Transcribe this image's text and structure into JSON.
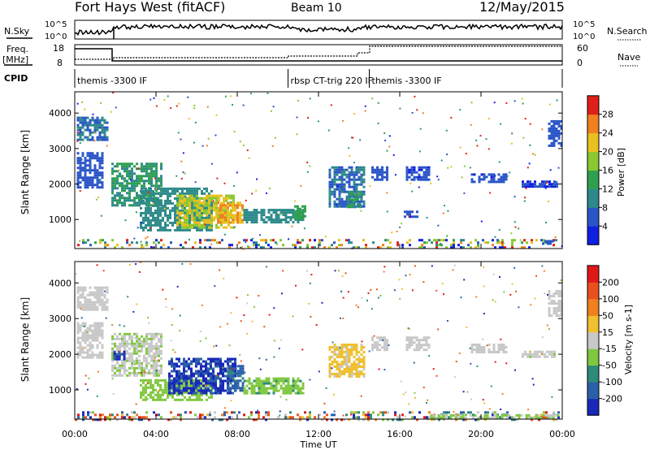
{
  "header": {
    "station": "Fort Hays West (fitACF)",
    "beam": "Beam 10",
    "date": "12/May/2015"
  },
  "status_panels": {
    "nsky_label": "N.Sky",
    "nsearch_label": "N.Search",
    "noise_ticks": [
      "10^5",
      "10^0"
    ],
    "noise_ticks_right": [
      "10^5",
      "10^0"
    ],
    "freq_label": "Freq.",
    "freq_unit": "[MHz]",
    "freq_ticks": [
      "18",
      "8"
    ],
    "nave_label": "Nave",
    "nave_ticks": [
      "60",
      "0"
    ],
    "cpid_label": "CPID",
    "cpid_segments": [
      {
        "start_hour": 0.0,
        "end_hour": 10.5,
        "label": "themis -3300 IF"
      },
      {
        "start_hour": 10.5,
        "end_hour": 14.5,
        "label": "rbsp CT-trig 220 IF"
      },
      {
        "start_hour": 14.5,
        "end_hour": 24.0,
        "label": "themis -3300 IF"
      }
    ]
  },
  "axes": {
    "xlabel": "Time UT",
    "x_range_hours": [
      0,
      24
    ],
    "x_ticks": [
      "00:00",
      "04:00",
      "08:00",
      "12:00",
      "16:00",
      "20:00",
      "00:00"
    ],
    "ylabel": "Slant Range [km]",
    "y_range_km": [
      180,
      4600
    ],
    "y_ticks": [
      1000,
      2000,
      3000,
      4000
    ]
  },
  "chart_data": [
    {
      "type": "heatmap",
      "panel": "power",
      "colorbar_label": "Power [dB]",
      "colorbar_ticks": [
        "28",
        "24",
        "20",
        "16",
        "12",
        "8",
        "4"
      ],
      "colorbar_range": [
        0,
        32
      ],
      "colors": [
        "#1020e0",
        "#2a55c8",
        "#2e8a8a",
        "#2ea050",
        "#8ac830",
        "#e8c020",
        "#f08020",
        "#e02018"
      ],
      "patches": [
        {
          "x0": 0.1,
          "x1": 1.6,
          "y0": 3250,
          "y1": 3900,
          "value": 8
        },
        {
          "x0": 0.1,
          "x1": 1.4,
          "y0": 1900,
          "y1": 2900,
          "value": 6
        },
        {
          "x0": 1.8,
          "x1": 4.3,
          "y0": 1400,
          "y1": 2600,
          "value": 12
        },
        {
          "x0": 3.2,
          "x1": 6.8,
          "y0": 700,
          "y1": 1900,
          "value": 10
        },
        {
          "x0": 5.0,
          "x1": 7.8,
          "y0": 800,
          "y1": 1700,
          "value": 20
        },
        {
          "x0": 7.0,
          "x1": 8.3,
          "y0": 900,
          "y1": 1500,
          "value": 24
        },
        {
          "x0": 8.3,
          "x1": 11.2,
          "y0": 900,
          "y1": 1300,
          "value": 10
        },
        {
          "x0": 10.8,
          "x1": 11.3,
          "y0": 1000,
          "y1": 1400,
          "value": 14
        },
        {
          "x0": 12.5,
          "x1": 14.3,
          "y0": 1400,
          "y1": 2500,
          "value": 8
        },
        {
          "x0": 13.4,
          "x1": 14.1,
          "y0": 1350,
          "y1": 1800,
          "value": 12
        },
        {
          "x0": 14.6,
          "x1": 15.4,
          "y0": 2150,
          "y1": 2500,
          "value": 6
        },
        {
          "x0": 16.3,
          "x1": 17.5,
          "y0": 2100,
          "y1": 2500,
          "value": 5
        },
        {
          "x0": 16.2,
          "x1": 16.9,
          "y0": 1050,
          "y1": 1250,
          "value": 5
        },
        {
          "x0": 19.5,
          "x1": 21.3,
          "y0": 2050,
          "y1": 2300,
          "value": 5
        },
        {
          "x0": 22.0,
          "x1": 23.8,
          "y0": 1950,
          "y1": 2100,
          "value": 4
        },
        {
          "x0": 23.3,
          "x1": 24.0,
          "y0": 3100,
          "y1": 3800,
          "value": 6
        },
        {
          "x0": 23.0,
          "x1": 23.6,
          "y0": 320,
          "y1": 420,
          "value": 6
        }
      ],
      "ground_band": {
        "x0": 0.0,
        "x1": 24.0,
        "y0": 180,
        "y1": 450
      }
    },
    {
      "type": "heatmap",
      "panel": "velocity",
      "colorbar_label": "Velocity [m s-1]",
      "colorbar_ticks": [
        "200",
        "100",
        "50",
        "15",
        "-15",
        "-50",
        "-100",
        "-200"
      ],
      "colorbar_range": [
        -250,
        250
      ],
      "colors": [
        "#1a28b8",
        "#2a60a8",
        "#2e8a7a",
        "#80c840",
        "#c8c8c8",
        "#f0c030",
        "#f08020",
        "#e85020",
        "#e01818"
      ],
      "patches": [
        {
          "x0": 0.1,
          "x1": 1.6,
          "y0": 3250,
          "y1": 3900,
          "value": 0
        },
        {
          "x0": 0.1,
          "x1": 1.4,
          "y0": 1900,
          "y1": 2900,
          "value": 5
        },
        {
          "x0": 1.8,
          "x1": 4.3,
          "y0": 1400,
          "y1": 2600,
          "value": -20
        },
        {
          "x0": 3.2,
          "x1": 6.8,
          "y0": 700,
          "y1": 1300,
          "value": -60
        },
        {
          "x0": 4.6,
          "x1": 7.9,
          "y0": 900,
          "y1": 1900,
          "value": -200
        },
        {
          "x0": 7.5,
          "x1": 8.3,
          "y0": 1000,
          "y1": 1700,
          "value": -150
        },
        {
          "x0": 8.3,
          "x1": 11.2,
          "y0": 900,
          "y1": 1350,
          "value": -70
        },
        {
          "x0": 12.5,
          "x1": 14.3,
          "y0": 1400,
          "y1": 2300,
          "value": 40
        },
        {
          "x0": 14.6,
          "x1": 15.4,
          "y0": 2150,
          "y1": 2500,
          "value": 0
        },
        {
          "x0": 16.3,
          "x1": 17.5,
          "y0": 2100,
          "y1": 2500,
          "value": 0
        },
        {
          "x0": 19.5,
          "x1": 21.3,
          "y0": 2050,
          "y1": 2300,
          "value": 0
        },
        {
          "x0": 22.0,
          "x1": 23.8,
          "y0": 1950,
          "y1": 2100,
          "value": -10
        },
        {
          "x0": 23.3,
          "x1": 24.0,
          "y0": 3100,
          "y1": 3800,
          "value": 0
        },
        {
          "x0": 1.9,
          "x1": 2.4,
          "y0": 1850,
          "y1": 2100,
          "value": -200
        },
        {
          "x0": 17.5,
          "x1": 23.8,
          "y0": 200,
          "y1": 320,
          "value": -30
        }
      ],
      "ground_band": {
        "x0": 0.0,
        "x1": 24.0,
        "y0": 180,
        "y1": 400
      }
    }
  ]
}
